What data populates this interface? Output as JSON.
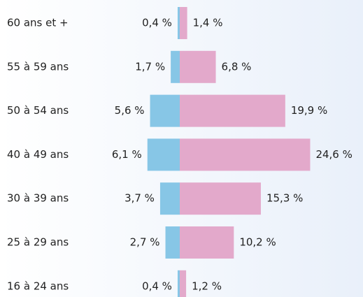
{
  "chart_data": {
    "type": "pyramid",
    "categories": [
      "60 ans et +",
      "55 à 59 ans",
      "50 à 54 ans",
      "40 à 49 ans",
      "30 à 39 ans",
      "25 à 29 ans",
      "16 à 24 ans"
    ],
    "series": [
      {
        "color": "#87c6e6",
        "side": "left",
        "values": [
          0.4,
          1.7,
          5.6,
          6.1,
          3.7,
          2.7,
          0.4
        ],
        "value_labels": [
          "0,4 %",
          "1,7 %",
          "5,6 %",
          "6,1 %",
          "3,7 %",
          "2,7 %",
          "0,4 %"
        ]
      },
      {
        "color": "#e3a9cb",
        "side": "right",
        "values": [
          1.4,
          6.8,
          19.9,
          24.6,
          15.3,
          10.2,
          1.2
        ],
        "value_labels": [
          "1,4 %",
          "6,8 %",
          "19,9 %",
          "24,6 %",
          "15,3 %",
          "10,2 %",
          "1,2 %"
        ]
      }
    ]
  }
}
